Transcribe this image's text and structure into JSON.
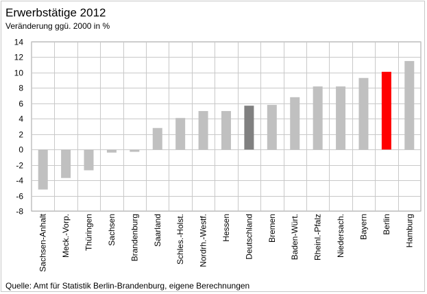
{
  "chart_data": {
    "type": "bar",
    "title": "Erwerbstätige 2012",
    "subtitle": "Veränderung ggü. 2000 in %",
    "source": "Quelle: Amt für Statistik Berlin-Brandenburg, eigene Berechnungen",
    "categories": [
      "Sachsen-Anhalt",
      "Meck.-Vorp.",
      "Thüringen",
      "Sachsen",
      "Brandenburg",
      "Saarland",
      "Schles.-Holst.",
      "Nordrh.-Westf.",
      "Hessen",
      "Deutschland",
      "Bremen",
      "Baden-Würt.",
      "Rheinl.-Pfalz",
      "Niedersach.",
      "Bayern",
      "Berlin",
      "Hamburg"
    ],
    "values": [
      -5.2,
      -3.7,
      -2.7,
      -0.4,
      -0.3,
      2.8,
      4.1,
      5.0,
      5.0,
      5.7,
      5.8,
      6.8,
      8.2,
      8.2,
      9.3,
      10.1,
      11.5
    ],
    "ylim": [
      -8,
      14
    ],
    "yticks": [
      -8,
      -6,
      -4,
      -2,
      0,
      2,
      4,
      6,
      8,
      10,
      12,
      14
    ],
    "grid": true,
    "colors": {
      "default": "#c0c0c0",
      "highlight_deutschland": "#808080",
      "highlight_berlin": "#ff0000",
      "grid": "#c8c8c8",
      "axis": "#a0a0a0"
    },
    "bar_colors": [
      "default",
      "default",
      "default",
      "default",
      "default",
      "default",
      "default",
      "default",
      "default",
      "highlight_deutschland",
      "default",
      "default",
      "default",
      "default",
      "default",
      "highlight_berlin",
      "default"
    ]
  }
}
